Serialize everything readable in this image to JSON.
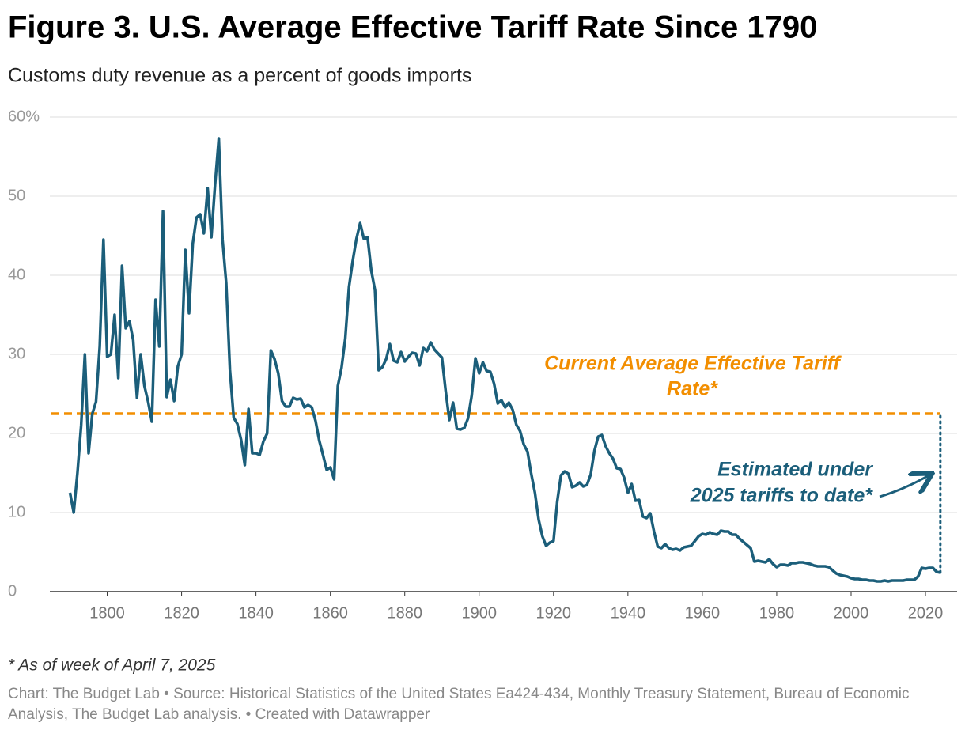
{
  "chart_data": {
    "type": "line",
    "title": "Figure 3. U.S. Average Effective Tariff Rate Since 1790",
    "subtitle": "Customs duty revenue as a percent of goods imports",
    "footnote": "* As of week of April 7, 2025",
    "source": "Chart: The Budget Lab • Source: Historical Statistics of the United States Ea424-434, Monthly Treasury Statement, Bureau of Economic Analysis, The Budget Lab analysis. • Created with Datawrapper",
    "color": "#1b5e7a",
    "x": [
      1790,
      1791,
      1792,
      1793,
      1794,
      1795,
      1796,
      1797,
      1798,
      1799,
      1800,
      1801,
      1802,
      1803,
      1804,
      1805,
      1806,
      1807,
      1808,
      1809,
      1810,
      1811,
      1812,
      1813,
      1814,
      1815,
      1816,
      1817,
      1818,
      1819,
      1820,
      1821,
      1822,
      1823,
      1824,
      1825,
      1826,
      1827,
      1828,
      1829,
      1830,
      1831,
      1832,
      1833,
      1834,
      1835,
      1836,
      1837,
      1838,
      1839,
      1840,
      1841,
      1842,
      1843,
      1844,
      1845,
      1846,
      1847,
      1848,
      1849,
      1850,
      1851,
      1852,
      1853,
      1854,
      1855,
      1856,
      1857,
      1858,
      1859,
      1860,
      1861,
      1862,
      1863,
      1864,
      1865,
      1866,
      1867,
      1868,
      1869,
      1870,
      1871,
      1872,
      1873,
      1874,
      1875,
      1876,
      1877,
      1878,
      1879,
      1880,
      1881,
      1882,
      1883,
      1884,
      1885,
      1886,
      1887,
      1888,
      1889,
      1890,
      1891,
      1892,
      1893,
      1894,
      1895,
      1896,
      1897,
      1898,
      1899,
      1900,
      1901,
      1902,
      1903,
      1904,
      1905,
      1906,
      1907,
      1908,
      1909,
      1910,
      1911,
      1912,
      1913,
      1914,
      1915,
      1916,
      1917,
      1918,
      1919,
      1920,
      1921,
      1922,
      1923,
      1924,
      1925,
      1926,
      1927,
      1928,
      1929,
      1930,
      1931,
      1932,
      1933,
      1934,
      1935,
      1936,
      1937,
      1938,
      1939,
      1940,
      1941,
      1942,
      1943,
      1944,
      1945,
      1946,
      1947,
      1948,
      1949,
      1950,
      1951,
      1952,
      1953,
      1954,
      1955,
      1956,
      1957,
      1958,
      1959,
      1960,
      1961,
      1962,
      1963,
      1964,
      1965,
      1966,
      1967,
      1968,
      1969,
      1970,
      1971,
      1972,
      1973,
      1974,
      1975,
      1976,
      1977,
      1978,
      1979,
      1980,
      1981,
      1982,
      1983,
      1984,
      1985,
      1986,
      1987,
      1988,
      1989,
      1990,
      1991,
      1992,
      1993,
      1994,
      1995,
      1996,
      1997,
      1998,
      1999,
      2000,
      2001,
      2002,
      2003,
      2004,
      2005,
      2006,
      2007,
      2008,
      2009,
      2010,
      2011,
      2012,
      2013,
      2014,
      2015,
      2016,
      2017,
      2018,
      2019,
      2020,
      2021,
      2022,
      2023,
      2024
    ],
    "values": [
      12.5,
      10,
      15,
      21,
      30,
      17.5,
      22.5,
      24,
      31,
      44.5,
      29.7,
      30,
      35,
      27,
      41.2,
      33.3,
      34.2,
      31.8,
      24.5,
      30,
      26,
      24,
      21.5,
      36.9,
      31,
      48.1,
      24.6,
      26.8,
      24.1,
      28.5,
      30,
      43.2,
      35.2,
      44,
      47.3,
      47.7,
      45.3,
      51,
      44.8,
      51.5,
      57.3,
      44.5,
      39,
      28,
      22,
      21.2,
      19.2,
      16,
      23.1,
      17.5,
      17.5,
      17.3,
      19,
      20,
      30.5,
      29.4,
      27.6,
      24.1,
      23.4,
      23.4,
      24.5,
      24.3,
      24.4,
      23.3,
      23.6,
      23.3,
      21.6,
      19.1,
      17.3,
      15.4,
      15.7,
      14.2,
      26,
      28.3,
      32,
      38.5,
      41.8,
      44.6,
      46.6,
      44.6,
      44.8,
      40.6,
      38.1,
      28,
      28.4,
      29.4,
      31.3,
      29.2,
      29,
      30.3,
      29.1,
      29.7,
      30.2,
      30.1,
      28.6,
      30.8,
      30.4,
      31.5,
      30.6,
      30.1,
      29.6,
      25.4,
      21.7,
      23.9,
      20.6,
      20.5,
      20.7,
      21.9,
      24.8,
      29.5,
      27.6,
      29,
      27.9,
      27.8,
      26.3,
      23.8,
      24.2,
      23.3,
      23.9,
      23,
      21.1,
      20.3,
      18.6,
      17.7,
      14.9,
      12.5,
      9.1,
      7,
      5.8,
      6.2,
      6.4,
      11.4,
      14.7,
      15.2,
      14.9,
      13.2,
      13.4,
      13.8,
      13.3,
      13.5,
      14.8,
      17.8,
      19.6,
      19.8,
      18.4,
      17.5,
      16.8,
      15.6,
      15.5,
      14.4,
      12.5,
      13.6,
      11.5,
      11.6,
      9.5,
      9.3,
      9.9,
      7.6,
      5.7,
      5.5,
      6,
      5.5,
      5.3,
      5.4,
      5.2,
      5.6,
      5.7,
      5.8,
      6.4,
      7,
      7.3,
      7.2,
      7.5,
      7.3,
      7.2,
      7.7,
      7.6,
      7.6,
      7.2,
      7.2,
      6.7,
      6.3,
      5.9,
      5.5,
      3.8,
      3.9,
      3.8,
      3.7,
      4.1,
      3.5,
      3.1,
      3.4,
      3.4,
      3.3,
      3.6,
      3.6,
      3.7,
      3.7,
      3.6,
      3.5,
      3.3,
      3.2,
      3.2,
      3.2,
      3.1,
      2.7,
      2.3,
      2.1,
      2,
      1.9,
      1.7,
      1.6,
      1.6,
      1.5,
      1.5,
      1.4,
      1.4,
      1.3,
      1.3,
      1.4,
      1.3,
      1.4,
      1.4,
      1.4,
      1.4,
      1.5,
      1.5,
      1.5,
      1.9,
      3,
      2.9,
      3,
      3,
      2.5,
      2.4
    ],
    "xlim": [
      1785,
      2028.5
    ],
    "xticks": [
      1800,
      1820,
      1840,
      1860,
      1880,
      1900,
      1920,
      1940,
      1960,
      1980,
      2000,
      2020
    ],
    "ylim": [
      0,
      60
    ],
    "yticks": [
      0,
      10,
      20,
      30,
      40,
      50,
      {
        "value": 60,
        "label": "60%"
      }
    ],
    "grid": true,
    "reference_line": {
      "value": 22.5,
      "color": "#f28e00",
      "label_lines": [
        "Current Average Effective Tariff",
        "Rate*"
      ]
    },
    "annotation_lines": [
      "Estimated under",
      "2025 tariffs to date*"
    ]
  }
}
